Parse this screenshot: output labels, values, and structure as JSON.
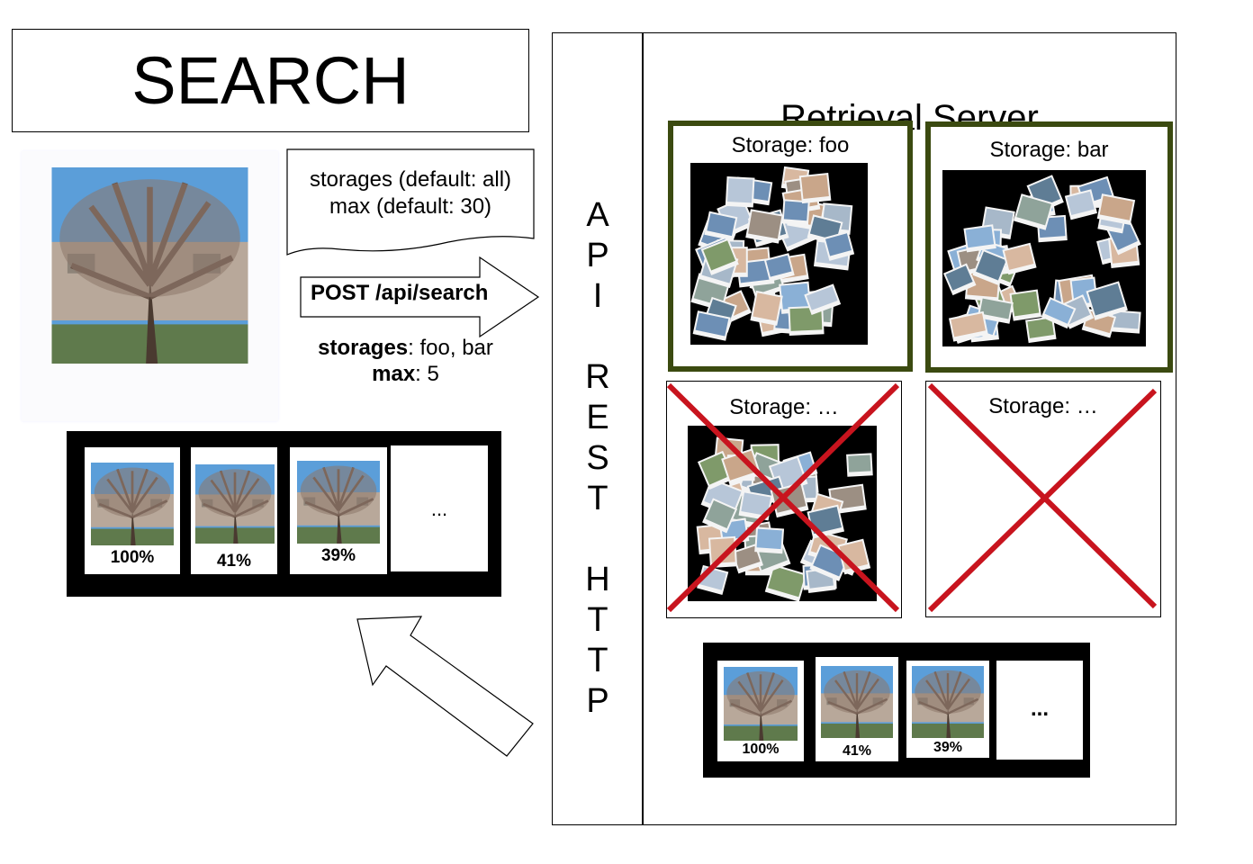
{
  "title": "SEARCH",
  "query_image_icon": "tree-photo",
  "note": {
    "line1": "storages (default: all)",
    "line2": "max (default: 30)"
  },
  "request": {
    "label": "POST /api/search",
    "storages_key": "storages",
    "storages_value": ": foo, bar",
    "max_key": "max",
    "max_value": ": 5"
  },
  "results_left": [
    {
      "pct": "100%"
    },
    {
      "pct": "41%"
    },
    {
      "pct": "39%"
    },
    {
      "more": "..."
    }
  ],
  "api": {
    "letters": [
      "A",
      "P",
      "I",
      "",
      "R",
      "E",
      "S",
      "T",
      "",
      "H",
      "T",
      "T",
      "P"
    ]
  },
  "server": {
    "title": "Retrieval Server",
    "storages": [
      {
        "label": "Storage: foo",
        "status": "active"
      },
      {
        "label": "Storage: bar",
        "status": "active"
      },
      {
        "label": "Storage: …",
        "status": "excluded"
      },
      {
        "label": "Storage: …",
        "status": "excluded"
      }
    ],
    "results": [
      {
        "pct": "100%"
      },
      {
        "pct": "41%"
      },
      {
        "pct": "39%"
      },
      {
        "more": "..."
      }
    ]
  },
  "colors": {
    "active_border": "#3b4a10",
    "cross": "#c8141e",
    "sky": "#4f95d8"
  }
}
